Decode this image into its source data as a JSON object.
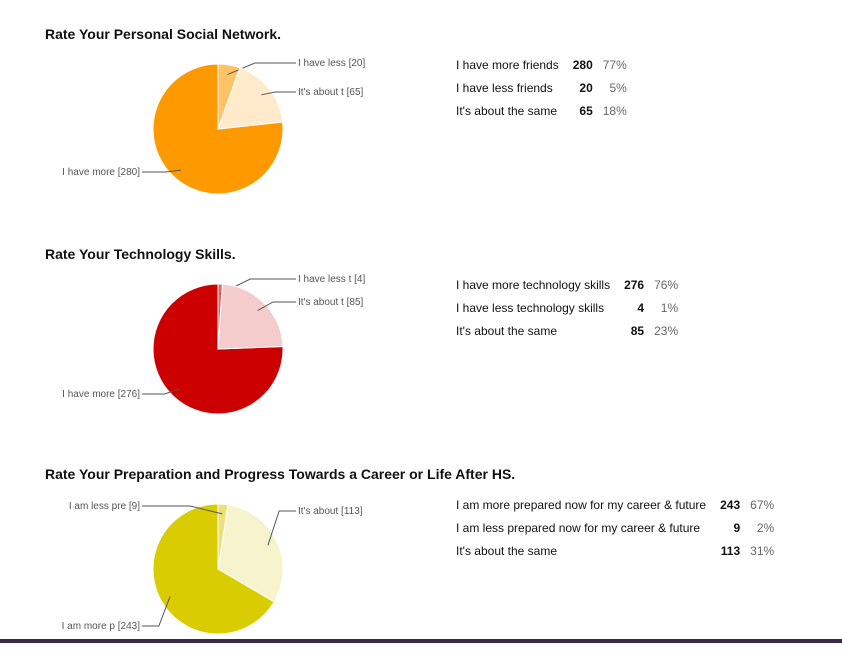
{
  "chart_data": [
    {
      "type": "pie",
      "title": "Rate Your Personal Social Network.",
      "categories": [
        "I have more friends",
        "I have less friends",
        "It's about the same"
      ],
      "values": [
        280,
        20,
        65
      ],
      "percents": [
        "77%",
        "5%",
        "18%"
      ],
      "slice_labels": [
        "I have more [280]",
        "I have less  [20]",
        "It's about t [65]"
      ],
      "colors": [
        "#FF9900",
        "#FFC266",
        "#FFEBCC"
      ]
    },
    {
      "type": "pie",
      "title": "Rate Your Technology Skills.",
      "categories": [
        "I have more technology skills",
        "I have less technology skills",
        "It's about the same"
      ],
      "values": [
        276,
        4,
        85
      ],
      "percents": [
        "76%",
        "1%",
        "23%"
      ],
      "slice_labels": [
        "I have more [276]",
        "I have less t [4]",
        "It's about t [85]"
      ],
      "colors": [
        "#CC0000",
        "#E06666",
        "#F4CCCC"
      ]
    },
    {
      "type": "pie",
      "title": "Rate Your Preparation and Progress Towards a Career or Life After HS.",
      "categories": [
        "I am more prepared now for my career & future",
        "I am less prepared now for my career & future",
        "It's about the same"
      ],
      "values": [
        243,
        9,
        113
      ],
      "percents": [
        "67%",
        "2%",
        "31%"
      ],
      "slice_labels": [
        "I am more p [243]",
        "I am less pre [9]",
        "It's about  [113]"
      ],
      "colors": [
        "#D9CC00",
        "#EBE07A",
        "#F7F3CC"
      ]
    }
  ]
}
